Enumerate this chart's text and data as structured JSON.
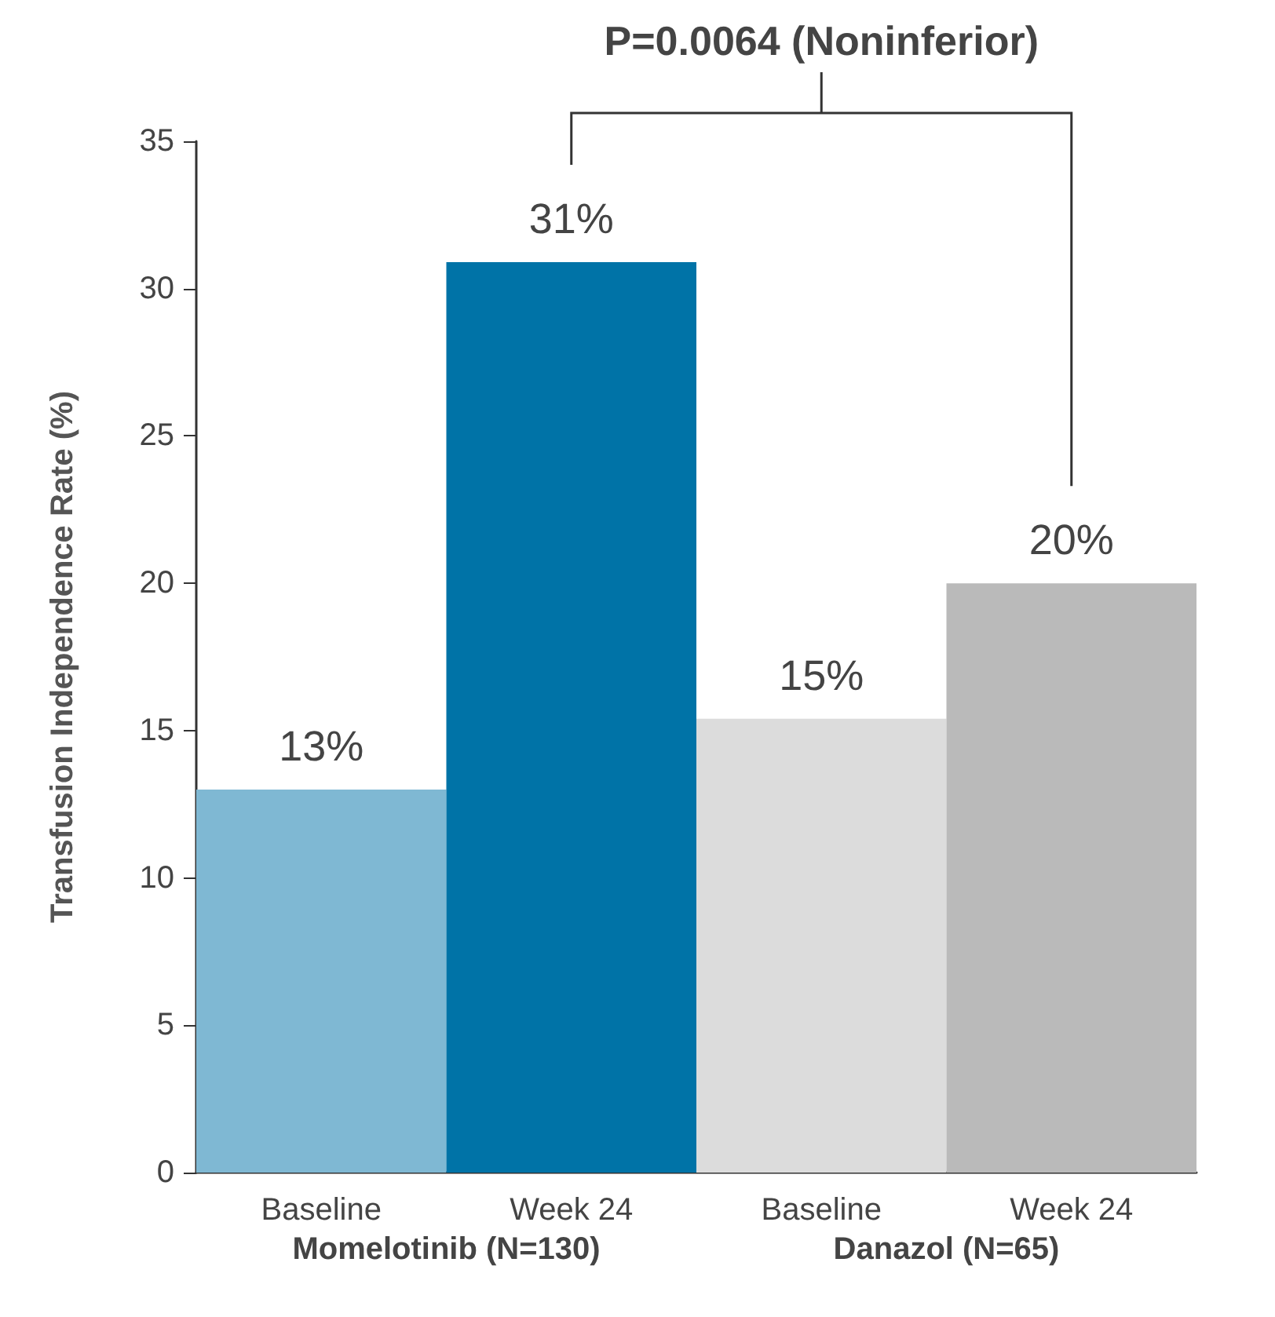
{
  "chart_data": {
    "type": "bar",
    "ylabel": "Transfusion Independence Rate (%)",
    "categories": [
      "Baseline",
      "Week 24",
      "Baseline",
      "Week 24"
    ],
    "values": [
      13.0,
      30.9,
      15.4,
      20.0
    ],
    "colors": [
      "#7fb8d3",
      "#0073a7",
      "#dcdcdc",
      "#bababa"
    ],
    "value_labels": [
      "13%",
      "31%",
      "15%",
      "20%"
    ],
    "ylim": [
      0,
      35
    ],
    "yticks": [
      0,
      5,
      10,
      15,
      20,
      25,
      30,
      35
    ],
    "grid": false,
    "annotations": [
      "P=0.0064 (Noninferior)",
      "Momelotinib (N=130)",
      "Danazol (N=65)"
    ]
  }
}
